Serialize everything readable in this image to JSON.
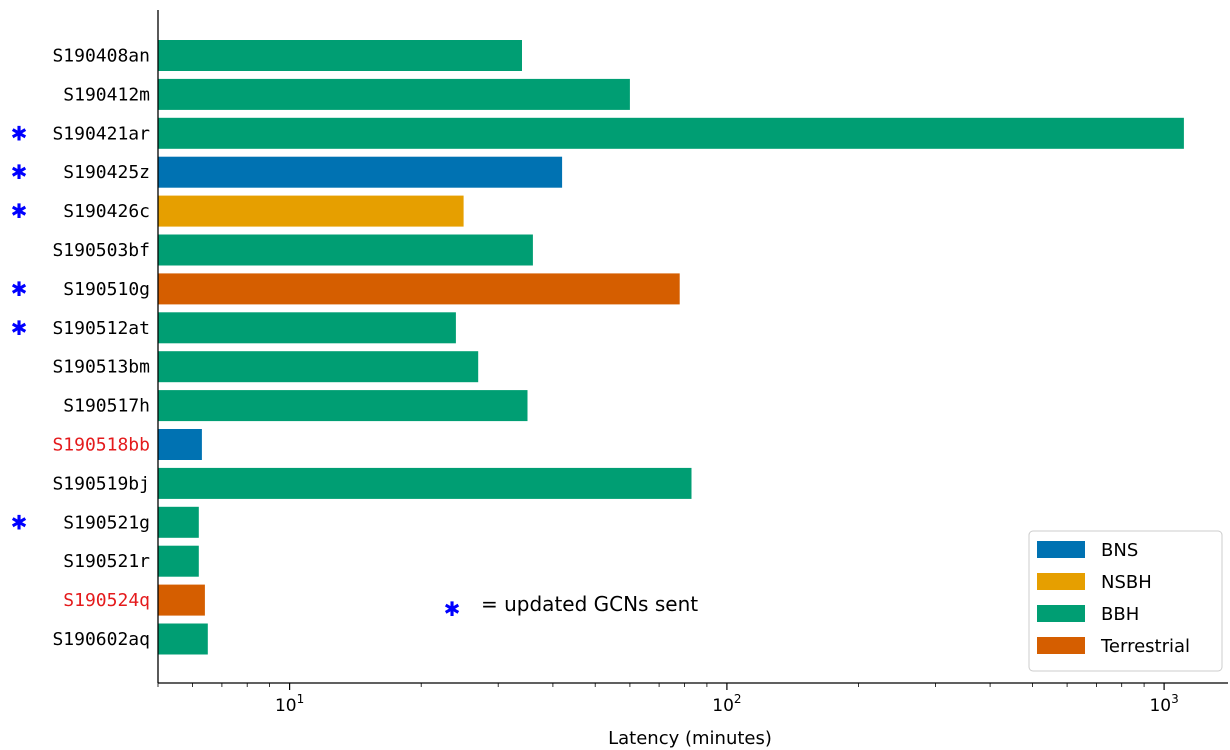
{
  "chart_data": {
    "type": "bar",
    "orientation": "horizontal",
    "x_scale": "log",
    "xlim": [
      5,
      1400
    ],
    "xlabel": "Latency (minutes)",
    "x_ticks": [
      {
        "value": 10,
        "base": "10",
        "exp": "1"
      },
      {
        "value": 100,
        "base": "10",
        "exp": "2"
      },
      {
        "value": 1000,
        "base": "10",
        "exp": "3"
      }
    ],
    "colors": {
      "BNS": "#0072b2",
      "NSBH": "#e69f00",
      "BBH": "#009e73",
      "Terrestrial": "#d55e00",
      "label_default": "#000000",
      "label_highlight": "#e41a1c",
      "marker": "#0000ff"
    },
    "events": [
      {
        "name": "S190408an",
        "latency": 34,
        "class": "BBH",
        "updated": false,
        "highlight": false
      },
      {
        "name": "S190412m",
        "latency": 60,
        "class": "BBH",
        "updated": false,
        "highlight": false
      },
      {
        "name": "S190421ar",
        "latency": 1110,
        "class": "BBH",
        "updated": true,
        "highlight": false
      },
      {
        "name": "S190425z",
        "latency": 42,
        "class": "BNS",
        "updated": true,
        "highlight": false
      },
      {
        "name": "S190426c",
        "latency": 25,
        "class": "NSBH",
        "updated": true,
        "highlight": false
      },
      {
        "name": "S190503bf",
        "latency": 36,
        "class": "BBH",
        "updated": false,
        "highlight": false
      },
      {
        "name": "S190510g",
        "latency": 78,
        "class": "Terrestrial",
        "updated": true,
        "highlight": false
      },
      {
        "name": "S190512at",
        "latency": 24,
        "class": "BBH",
        "updated": true,
        "highlight": false
      },
      {
        "name": "S190513bm",
        "latency": 27,
        "class": "BBH",
        "updated": false,
        "highlight": false
      },
      {
        "name": "S190517h",
        "latency": 35,
        "class": "BBH",
        "updated": false,
        "highlight": false
      },
      {
        "name": "S190518bb",
        "latency": 6.3,
        "class": "BNS",
        "updated": false,
        "highlight": true
      },
      {
        "name": "S190519bj",
        "latency": 83,
        "class": "BBH",
        "updated": false,
        "highlight": false
      },
      {
        "name": "S190521g",
        "latency": 6.2,
        "class": "BBH",
        "updated": true,
        "highlight": false
      },
      {
        "name": "S190521r",
        "latency": 6.2,
        "class": "BBH",
        "updated": false,
        "highlight": false
      },
      {
        "name": "S190524q",
        "latency": 6.4,
        "class": "Terrestrial",
        "updated": false,
        "highlight": true
      },
      {
        "name": "S190602aq",
        "latency": 6.5,
        "class": "BBH",
        "updated": false,
        "highlight": false
      }
    ],
    "legend": {
      "placement": "bottom-right",
      "entries": [
        {
          "label": "BNS",
          "color": "#0072b2"
        },
        {
          "label": "NSBH",
          "color": "#e69f00"
        },
        {
          "label": "BBH",
          "color": "#009e73"
        },
        {
          "label": "Terrestrial",
          "color": "#d55e00"
        }
      ]
    },
    "annotation": {
      "marker": "✱",
      "text": "= updated GCNs sent"
    },
    "grid": false
  }
}
